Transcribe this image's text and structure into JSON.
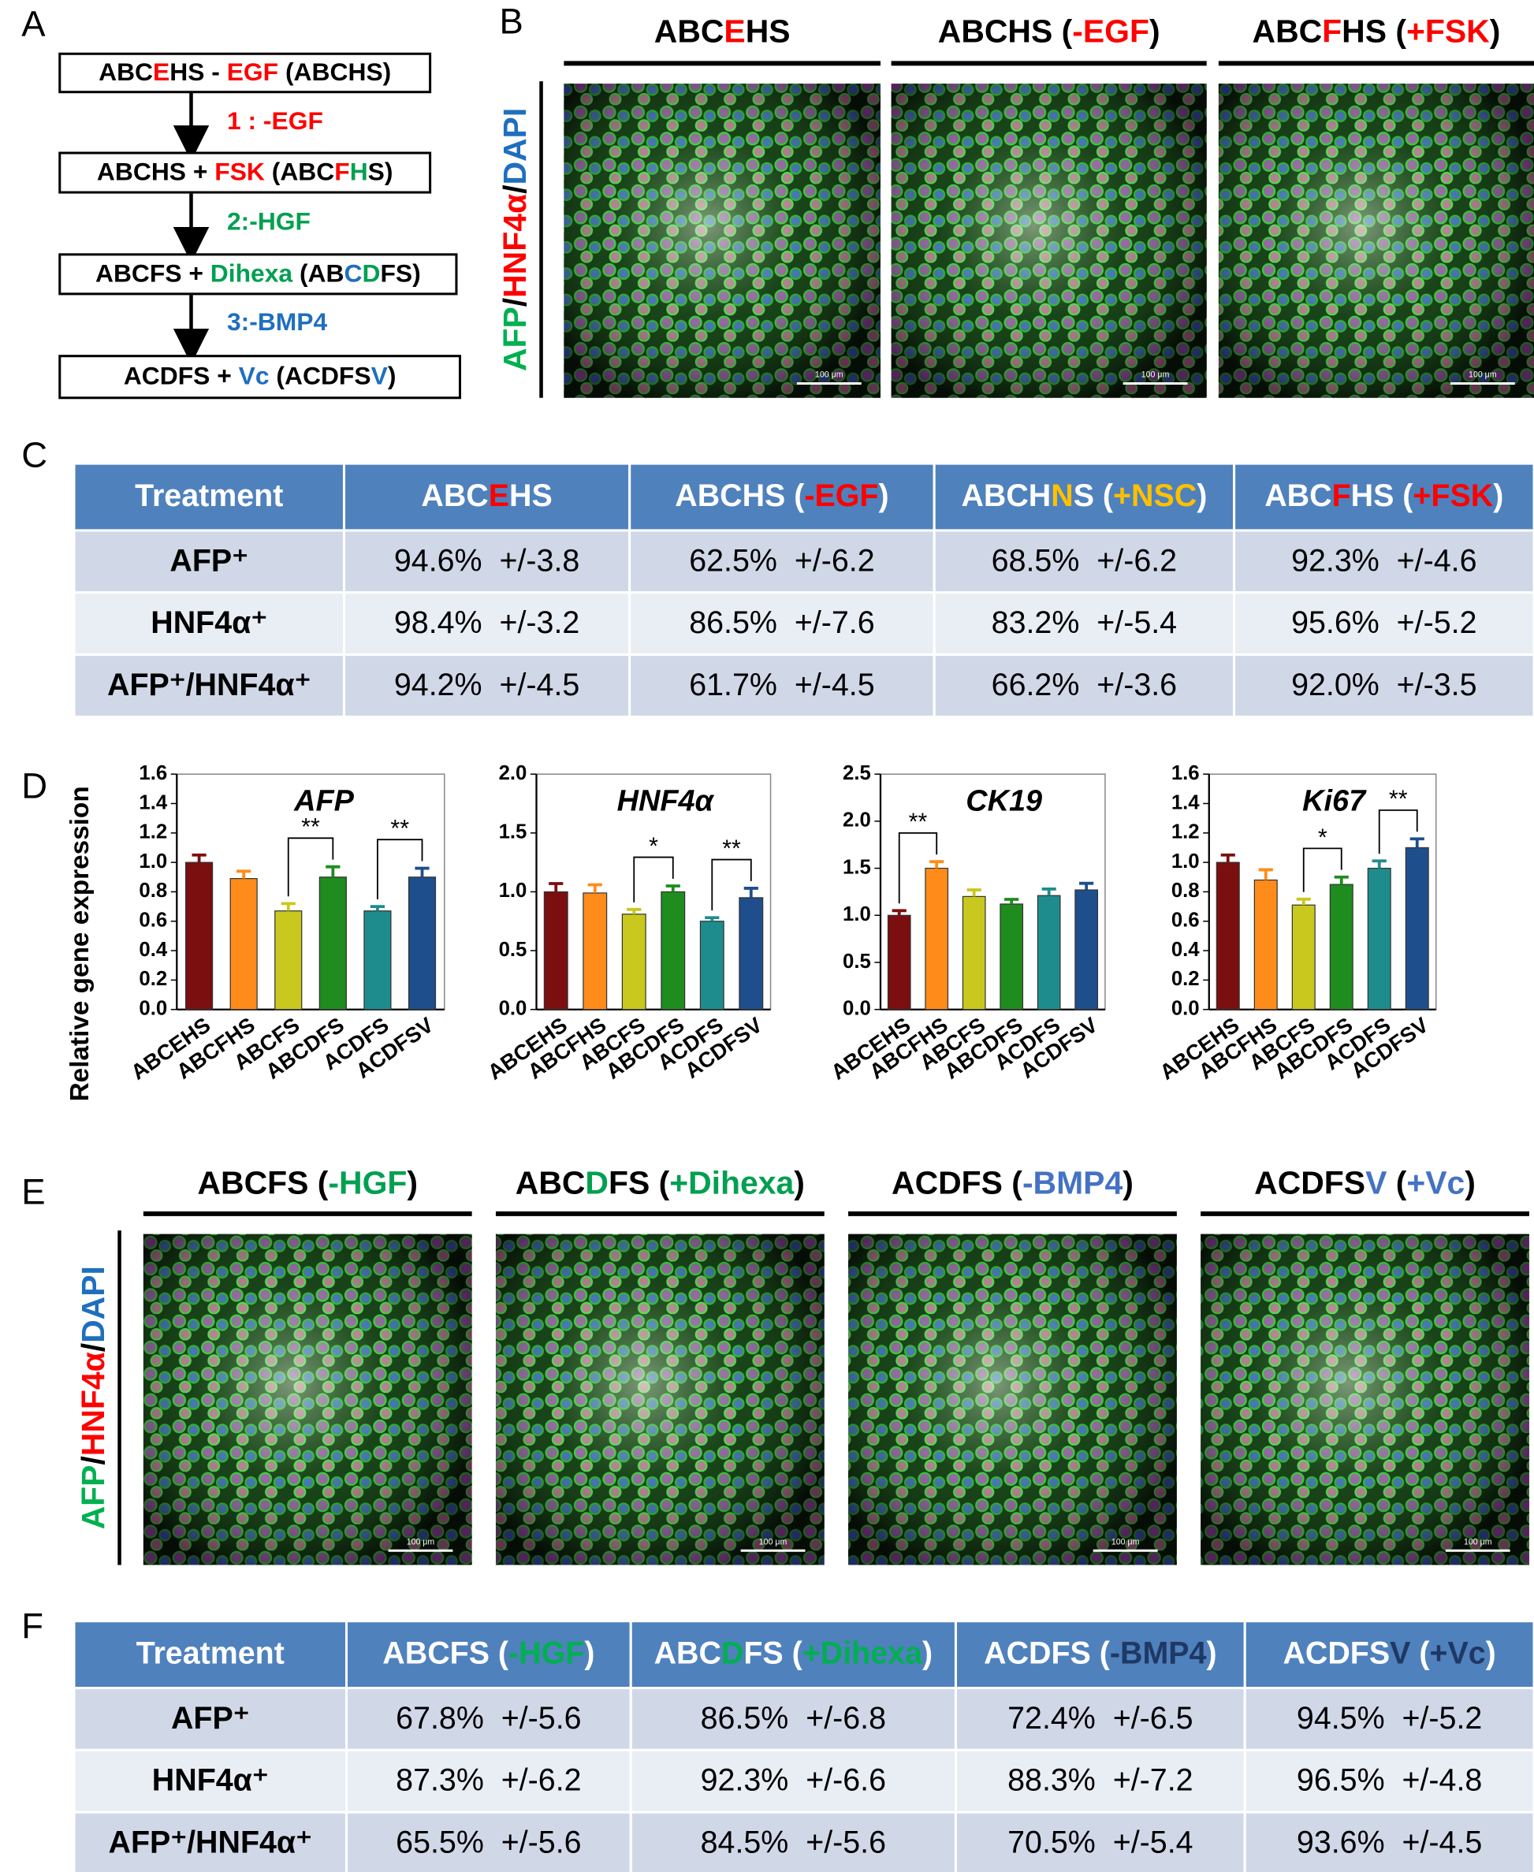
{
  "panel_labels": [
    "A",
    "B",
    "C",
    "D",
    "E",
    "F"
  ],
  "flowchart": {
    "boxes": [
      [
        {
          "text": "ABC"
        },
        {
          "text": "E",
          "color": "#ff0000"
        },
        {
          "text": "HS - "
        },
        {
          "text": "EGF",
          "color": "#ff0000"
        },
        {
          "text": " (ABCHS)"
        }
      ],
      [
        {
          "text": "ABCHS + "
        },
        {
          "text": "FSK",
          "color": "#ff0000"
        },
        {
          "text": " (ABC"
        },
        {
          "text": "F",
          "color": "#ff0000"
        },
        {
          "text": "H",
          "color": "#00a050"
        },
        {
          "text": "S)"
        }
      ],
      [
        {
          "text": "ABCFS + "
        },
        {
          "text": "Dihexa",
          "color": "#00a050"
        },
        {
          "text": " (AB"
        },
        {
          "text": "C",
          "color": "#1f6fbf"
        },
        {
          "text": "D",
          "color": "#00a050"
        },
        {
          "text": "FS)"
        }
      ],
      [
        {
          "text": "ACDFS + "
        },
        {
          "text": "Vc",
          "color": "#1f6fbf"
        },
        {
          "text": " (ACDFS"
        },
        {
          "text": "V",
          "color": "#1f6fbf"
        },
        {
          "text": ")"
        }
      ]
    ],
    "steps": [
      [
        {
          "text": "1 : -EGF",
          "color": "#ff0000"
        }
      ],
      [
        {
          "text": "2:-HGF",
          "color": "#00a050"
        }
      ],
      [
        {
          "text": "3:-BMP4",
          "color": "#1f6fbf"
        }
      ]
    ]
  },
  "panel_b": {
    "side_label": [
      {
        "text": "AFP",
        "color": "#00b050"
      },
      {
        "text": "/"
      },
      {
        "text": "HNF4α",
        "color": "#ff0000"
      },
      {
        "text": "/"
      },
      {
        "text": "DAPI",
        "color": "#1f6fbf"
      }
    ],
    "scale_bar": "100 μm",
    "headers": [
      [
        {
          "text": "ABC"
        },
        {
          "text": "E",
          "color": "#ff0000"
        },
        {
          "text": "HS"
        }
      ],
      [
        {
          "text": "ABCHS ("
        },
        {
          "text": "-EGF",
          "color": "#ff0000"
        },
        {
          "text": ")"
        }
      ],
      [
        {
          "text": "ABC"
        },
        {
          "text": "F",
          "color": "#ff0000"
        },
        {
          "text": "HS ("
        },
        {
          "text": "+FSK",
          "color": "#ff0000"
        },
        {
          "text": ")"
        }
      ]
    ]
  },
  "table_c": {
    "header": [
      [
        {
          "text": "Treatment"
        }
      ],
      [
        {
          "text": "ABC"
        },
        {
          "text": "E",
          "color": "#ff0000"
        },
        {
          "text": "HS"
        }
      ],
      [
        {
          "text": "ABCHS ("
        },
        {
          "text": "-EGF",
          "color": "#ff0000"
        },
        {
          "text": ")"
        }
      ],
      [
        {
          "text": "ABCH"
        },
        {
          "text": "N",
          "color": "#ffc000"
        },
        {
          "text": "S ("
        },
        {
          "text": "+NSC",
          "color": "#ffc000"
        },
        {
          "text": ")"
        }
      ],
      [
        {
          "text": "ABC"
        },
        {
          "text": "F",
          "color": "#ff0000"
        },
        {
          "text": "HS ("
        },
        {
          "text": "+FSK",
          "color": "#ff0000"
        },
        {
          "text": ")"
        }
      ]
    ],
    "rows": [
      [
        "AFP⁺",
        "94.6%  +/-3.8",
        "62.5%  +/-6.2",
        "68.5%  +/-6.2",
        "92.3%  +/-4.6"
      ],
      [
        "HNF4α⁺",
        "98.4%  +/-3.2",
        "86.5%  +/-7.6",
        "83.2%  +/-5.4",
        "95.6%  +/-5.2"
      ],
      [
        "AFP⁺/HNF4α⁺",
        "94.2%  +/-4.5",
        "61.7%  +/-4.5",
        "66.2%  +/-3.6",
        "92.0%  +/-3.5"
      ]
    ]
  },
  "chart_data": [
    {
      "type": "bar",
      "title": "AFP",
      "ylabel": "Relative gene expression",
      "categories": [
        "ABCEHS",
        "ABCFHS",
        "ABCFS",
        "ABCDFS",
        "ACDFS",
        "ACDFSV"
      ],
      "values": [
        1.0,
        0.89,
        0.67,
        0.9,
        0.67,
        0.9
      ],
      "errors": [
        0.05,
        0.05,
        0.05,
        0.07,
        0.03,
        0.06
      ],
      "colors": [
        "#7b0f0f",
        "#ff8c1a",
        "#c8c81e",
        "#1e8c1e",
        "#1e8c8c",
        "#1f4e8c"
      ],
      "ylim": [
        0,
        1.6
      ],
      "yticks": [
        {
          "value": 0,
          "label": "0.0"
        },
        0.2,
        0.4,
        0.6,
        0.8,
        {
          "value": 1,
          "label": "1.0"
        },
        1.2,
        1.4,
        1.6
      ],
      "annotations": [
        {
          "text": "**",
          "from": 2,
          "to": 3
        },
        {
          "text": "**",
          "from": 4,
          "to": 5
        }
      ]
    },
    {
      "type": "bar",
      "title": "HNF4α",
      "categories": [
        "ABCEHS",
        "ABCFHS",
        "ABCFS",
        "ABCDFS",
        "ACDFS",
        "ACDFSV"
      ],
      "values": [
        1.0,
        0.99,
        0.81,
        1.0,
        0.75,
        0.95
      ],
      "errors": [
        0.07,
        0.07,
        0.04,
        0.05,
        0.03,
        0.08
      ],
      "colors": [
        "#7b0f0f",
        "#ff8c1a",
        "#c8c81e",
        "#1e8c1e",
        "#1e8c8c",
        "#1f4e8c"
      ],
      "ylim": [
        0,
        2
      ],
      "yticks": [
        {
          "value": 0,
          "label": "0.0"
        },
        0.5,
        {
          "value": 1,
          "label": "1.0"
        },
        1.5,
        {
          "value": 2,
          "label": "2.0"
        }
      ],
      "annotations": [
        {
          "text": "*",
          "from": 2,
          "to": 3
        },
        {
          "text": "**",
          "from": 4,
          "to": 5
        }
      ]
    },
    {
      "type": "bar",
      "title": "CK19",
      "categories": [
        "ABCEHS",
        "ABCFHS",
        "ABCFS",
        "ABCDFS",
        "ACDFS",
        "ACDFSV"
      ],
      "values": [
        1.0,
        1.5,
        1.2,
        1.12,
        1.21,
        1.27
      ],
      "errors": [
        0.05,
        0.07,
        0.07,
        0.05,
        0.07,
        0.07
      ],
      "colors": [
        "#7b0f0f",
        "#ff8c1a",
        "#c8c81e",
        "#1e8c1e",
        "#1e8c8c",
        "#1f4e8c"
      ],
      "ylim": [
        0,
        2.5
      ],
      "yticks": [
        {
          "value": 0,
          "label": "0.0"
        },
        0.5,
        {
          "value": 1,
          "label": "1.0"
        },
        1.5,
        {
          "value": 2,
          "label": "2.0"
        },
        2.5
      ],
      "annotations": [
        {
          "text": "**",
          "from": 0,
          "to": 1
        }
      ]
    },
    {
      "type": "bar",
      "title": "Ki67",
      "categories": [
        "ABCEHS",
        "ABCFHS",
        "ABCFS",
        "ABCDFS",
        "ACDFS",
        "ACDFSV"
      ],
      "values": [
        1.0,
        0.88,
        0.71,
        0.85,
        0.96,
        1.1
      ],
      "errors": [
        0.05,
        0.07,
        0.04,
        0.05,
        0.05,
        0.06
      ],
      "colors": [
        "#7b0f0f",
        "#ff8c1a",
        "#c8c81e",
        "#1e8c1e",
        "#1e8c8c",
        "#1f4e8c"
      ],
      "ylim": [
        0,
        1.6
      ],
      "yticks": [
        {
          "value": 0,
          "label": "0.0"
        },
        0.2,
        0.4,
        0.6,
        0.8,
        {
          "value": 1,
          "label": "1.0"
        },
        1.2,
        1.4,
        1.6
      ],
      "annotations": [
        {
          "text": "*",
          "from": 2,
          "to": 3
        },
        {
          "text": "**",
          "from": 4,
          "to": 5
        }
      ]
    }
  ],
  "panel_e": {
    "side_label": [
      {
        "text": "AFP",
        "color": "#00b050"
      },
      {
        "text": "/"
      },
      {
        "text": "HNF4α",
        "color": "#ff0000"
      },
      {
        "text": "/"
      },
      {
        "text": "DAPI",
        "color": "#1f6fbf"
      }
    ],
    "scale_bar": "100 μm",
    "headers": [
      [
        {
          "text": "ABCFS ("
        },
        {
          "text": "-HGF",
          "color": "#00a050"
        },
        {
          "text": ")"
        }
      ],
      [
        {
          "text": "ABC"
        },
        {
          "text": "D",
          "color": "#00a050"
        },
        {
          "text": "FS ("
        },
        {
          "text": "+Dihexa",
          "color": "#00a050"
        },
        {
          "text": ")"
        }
      ],
      [
        {
          "text": "ACDFS ("
        },
        {
          "text": "-BMP4",
          "color": "#4472c4"
        },
        {
          "text": ")"
        }
      ],
      [
        {
          "text": "ACDFS"
        },
        {
          "text": "V",
          "color": "#4472c4"
        },
        {
          "text": " ("
        },
        {
          "text": "+Vc",
          "color": "#4472c4"
        },
        {
          "text": ")"
        }
      ]
    ]
  },
  "table_f": {
    "header": [
      [
        {
          "text": "Treatment"
        }
      ],
      [
        {
          "text": "ABCFS ("
        },
        {
          "text": "-HGF",
          "color": "#00b050"
        },
        {
          "text": ")"
        }
      ],
      [
        {
          "text": "ABC"
        },
        {
          "text": "D",
          "color": "#00b050"
        },
        {
          "text": "FS ("
        },
        {
          "text": "+Dihexa",
          "color": "#00b050"
        },
        {
          "text": ")"
        }
      ],
      [
        {
          "text": "ACDFS ("
        },
        {
          "text": "-BMP4",
          "color": "#1f3864"
        },
        {
          "text": ")"
        }
      ],
      [
        {
          "text": "ACDFS"
        },
        {
          "text": "V",
          "color": "#1f3864"
        },
        {
          "text": " ("
        },
        {
          "text": "+Vc",
          "color": "#1f3864"
        },
        {
          "text": ")"
        }
      ]
    ],
    "rows": [
      [
        "AFP⁺",
        "67.8%  +/-5.6",
        "86.5%  +/-6.8",
        "72.4%  +/-6.5",
        "94.5%  +/-5.2"
      ],
      [
        "HNF4α⁺",
        "87.3%  +/-6.2",
        "92.3%  +/-6.6",
        "88.3%  +/-7.2",
        "96.5%  +/-4.8"
      ],
      [
        "AFP⁺/HNF4α⁺",
        "65.5%  +/-5.6",
        "84.5%  +/-5.6",
        "70.5%  +/-5.4",
        "93.6%  +/-4.5"
      ]
    ]
  }
}
